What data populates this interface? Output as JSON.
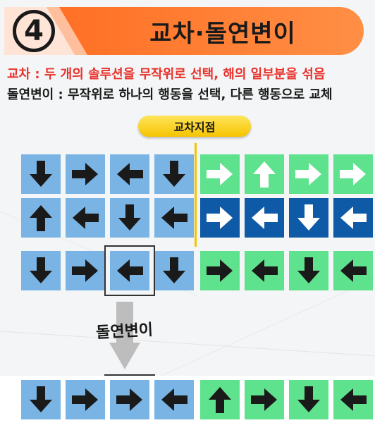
{
  "header": {
    "step_number": "4",
    "title": "교차·돌연변이",
    "accent_color": "#ff7a2f"
  },
  "definitions": {
    "crossover": "교차 : 두 개의 솔루션을 무작위로 선택, 해의 일부분을 섞음",
    "mutation": "돌연변이 : 무작위로 하나의 행동을 선택, 다른 행동으로 교체"
  },
  "crossover_point_label": "교차지점",
  "mutation_label": "돌연변이",
  "colors": {
    "blue_light": "#79b4e4",
    "green": "#5fe28d",
    "blue_dark": "#0f5aa6",
    "yellow": "#f5c400"
  },
  "rows": [
    {
      "name": "parent-1",
      "tiles": [
        {
          "dir": "down",
          "color": "blue-light",
          "arrow": "black"
        },
        {
          "dir": "right",
          "color": "blue-light",
          "arrow": "black"
        },
        {
          "dir": "left",
          "color": "blue-light",
          "arrow": "black"
        },
        {
          "dir": "down",
          "color": "blue-light",
          "arrow": "black"
        },
        {
          "dir": "right",
          "color": "green",
          "arrow": "white"
        },
        {
          "dir": "up",
          "color": "green",
          "arrow": "white"
        },
        {
          "dir": "right",
          "color": "green",
          "arrow": "white"
        },
        {
          "dir": "right",
          "color": "green",
          "arrow": "white"
        }
      ]
    },
    {
      "name": "parent-2",
      "tiles": [
        {
          "dir": "up",
          "color": "blue-light",
          "arrow": "black"
        },
        {
          "dir": "left",
          "color": "blue-light",
          "arrow": "black"
        },
        {
          "dir": "down",
          "color": "blue-light",
          "arrow": "black"
        },
        {
          "dir": "left",
          "color": "blue-light",
          "arrow": "black"
        },
        {
          "dir": "right",
          "color": "blue-dark",
          "arrow": "white"
        },
        {
          "dir": "left",
          "color": "blue-dark",
          "arrow": "white"
        },
        {
          "dir": "down",
          "color": "blue-dark",
          "arrow": "white"
        },
        {
          "dir": "left",
          "color": "blue-dark",
          "arrow": "white"
        }
      ]
    },
    {
      "name": "child",
      "tiles": [
        {
          "dir": "down",
          "color": "blue-light",
          "arrow": "black"
        },
        {
          "dir": "right",
          "color": "blue-light",
          "arrow": "black"
        },
        {
          "dir": "left",
          "color": "blue-light",
          "arrow": "black"
        },
        {
          "dir": "down",
          "color": "blue-light",
          "arrow": "black"
        },
        {
          "dir": "right",
          "color": "green",
          "arrow": "black"
        },
        {
          "dir": "left",
          "color": "green",
          "arrow": "black"
        },
        {
          "dir": "down",
          "color": "green",
          "arrow": "black"
        },
        {
          "dir": "left",
          "color": "green",
          "arrow": "black"
        }
      ]
    },
    {
      "name": "mutated-child",
      "tiles": [
        {
          "dir": "down",
          "color": "blue-light",
          "arrow": "black"
        },
        {
          "dir": "right",
          "color": "blue-light",
          "arrow": "black"
        },
        {
          "dir": "right",
          "color": "blue-light",
          "arrow": "black"
        },
        {
          "dir": "left",
          "color": "blue-light",
          "arrow": "black"
        },
        {
          "dir": "up",
          "color": "green",
          "arrow": "black"
        },
        {
          "dir": "right",
          "color": "green",
          "arrow": "black"
        },
        {
          "dir": "down",
          "color": "green",
          "arrow": "black"
        },
        {
          "dir": "left",
          "color": "green",
          "arrow": "black"
        }
      ]
    }
  ],
  "selected_tile_index": 2
}
